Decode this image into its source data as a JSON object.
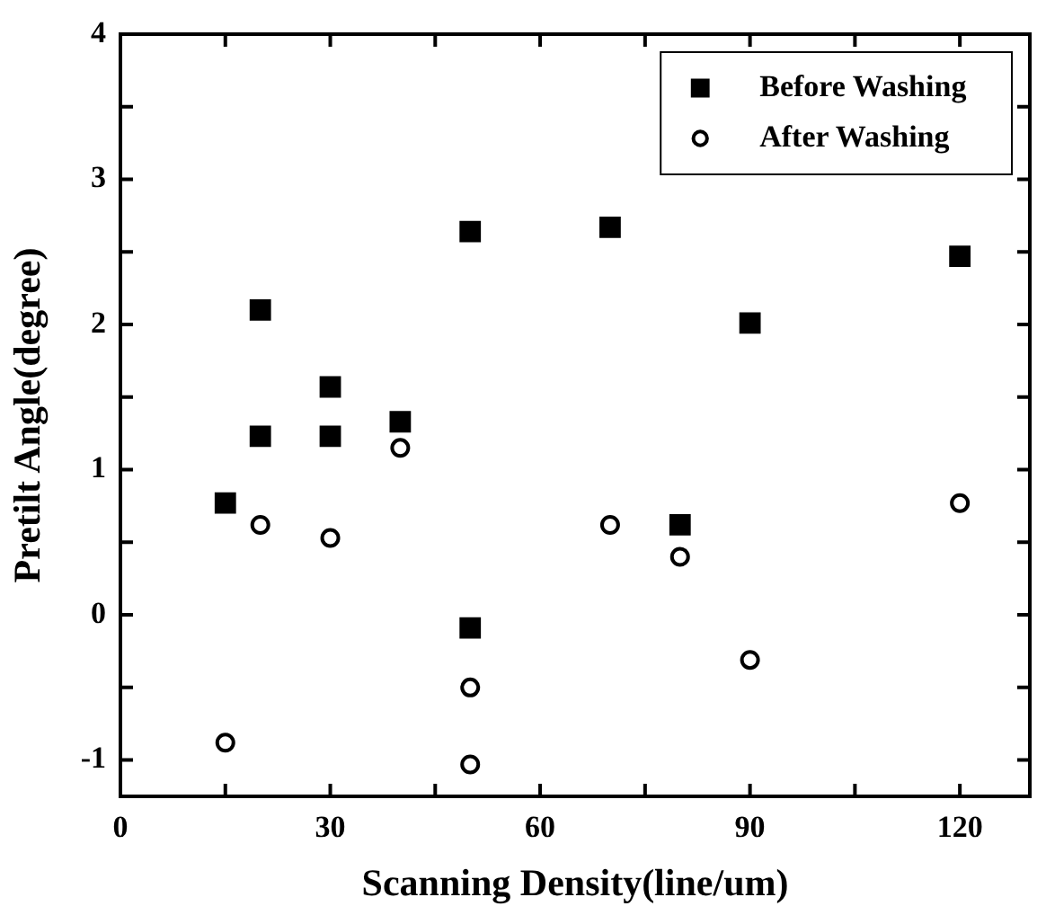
{
  "chart_data": {
    "type": "scatter",
    "xlabel": "Scanning Density(line/um)",
    "ylabel": "Pretilt Angle(degree)",
    "xlim": [
      0,
      130
    ],
    "ylim": [
      -1.25,
      4
    ],
    "xticks": [
      0,
      {
        "value": 15,
        "label": null
      },
      30,
      {
        "value": 45,
        "label": null
      },
      60,
      {
        "value": 75,
        "label": null
      },
      90,
      {
        "value": 105,
        "label": null
      },
      120
    ],
    "yticks": [
      -1,
      {
        "value": -0.5,
        "label": null
      },
      0,
      {
        "value": 0.5,
        "label": null
      },
      1,
      {
        "value": 1.5,
        "label": null
      },
      2,
      {
        "value": 2.5,
        "label": null
      },
      3,
      {
        "value": 3.5,
        "label": null
      },
      4
    ],
    "grid": false,
    "legend": "top right",
    "series": [
      {
        "name": "Before Washing",
        "color": "#000000",
        "marker": "square",
        "x": [
          15,
          20,
          20,
          30,
          30,
          40,
          50,
          50,
          70,
          80,
          90,
          120
        ],
        "values": [
          0.77,
          2.1,
          1.23,
          1.57,
          1.23,
          1.33,
          2.64,
          -0.09,
          2.67,
          0.62,
          2.01,
          2.47
        ]
      },
      {
        "name": "After Washing",
        "color": "#000000",
        "marker": "circle",
        "x": [
          15,
          20,
          30,
          40,
          50,
          50,
          70,
          80,
          90,
          120
        ],
        "values": [
          -0.88,
          0.62,
          0.53,
          1.15,
          -0.5,
          -1.03,
          0.62,
          0.4,
          -0.31,
          0.77
        ]
      }
    ]
  }
}
